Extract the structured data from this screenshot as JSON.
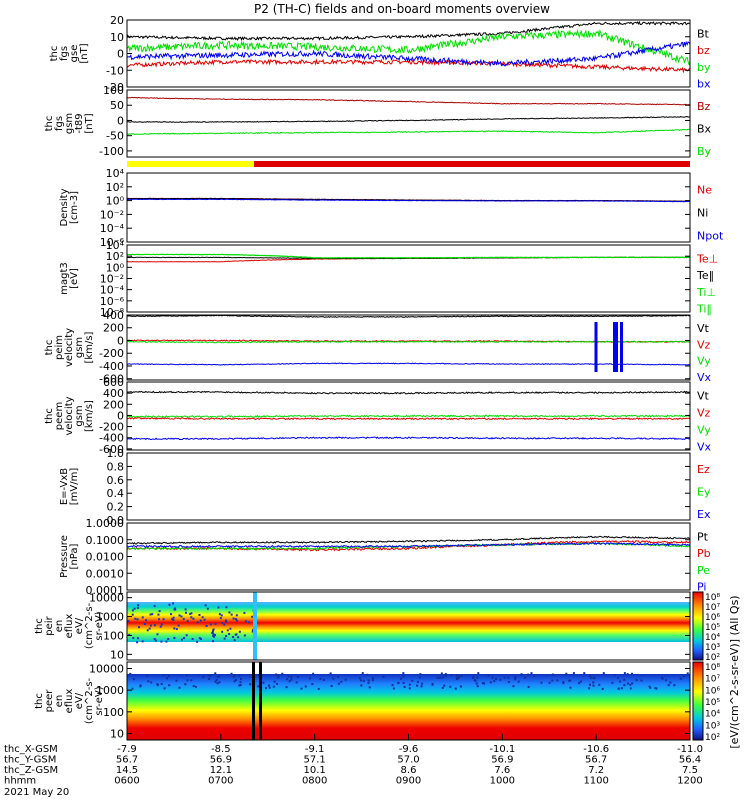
{
  "title": "P2 (TH-C) fields and on-board moments overview",
  "colors": {
    "black": "#000000",
    "red": "#dd0000",
    "green": "#00dd00",
    "blue": "#0000ee",
    "darkred": "#aa0000",
    "yellow": "#ffff00"
  },
  "panels": [
    {
      "id": "fgs",
      "ylabel": [
        "thc",
        "fgs",
        "gse",
        "[nT]"
      ],
      "ticks": [
        {
          "v": 20,
          "t": "20"
        },
        {
          "v": 10,
          "t": "10"
        },
        {
          "v": 0,
          "t": "0"
        },
        {
          "v": -10,
          "t": "-10"
        },
        {
          "v": -20,
          "t": "-20"
        }
      ],
      "legend": [
        {
          "t": "Bt",
          "c": "black"
        },
        {
          "t": "bz",
          "c": "red"
        },
        {
          "t": "by",
          "c": "green"
        },
        {
          "t": "bx",
          "c": "blue"
        }
      ]
    },
    {
      "id": "t89",
      "ylabel": [
        "thc",
        "fgs",
        "gsm",
        "-t89",
        "[nT]"
      ],
      "ticks": [
        {
          "v": 100,
          "t": "100"
        },
        {
          "v": 50,
          "t": "50"
        },
        {
          "v": 0,
          "t": "0"
        },
        {
          "v": -50,
          "t": "-50"
        },
        {
          "v": -100,
          "t": "-100"
        }
      ],
      "legend": [
        {
          "t": "Bz",
          "c": "darkred"
        },
        {
          "t": "Bx",
          "c": "black"
        },
        {
          "t": "By",
          "c": "green"
        }
      ]
    },
    {
      "id": "density",
      "ylabel": [
        "Density",
        "[cm-3]"
      ],
      "ticks": [
        {
          "v": 4,
          "t": "10⁴"
        },
        {
          "v": 2,
          "t": "10²"
        },
        {
          "v": 0,
          "t": "10⁰"
        },
        {
          "v": -2,
          "t": "10⁻²"
        },
        {
          "v": -4,
          "t": "10⁻⁴"
        },
        {
          "v": -6,
          "t": "10⁻⁶"
        }
      ],
      "legend": [
        {
          "t": "Ne",
          "c": "red"
        },
        {
          "t": "Ni",
          "c": "black"
        },
        {
          "t": "Npot",
          "c": "blue"
        }
      ]
    },
    {
      "id": "temp",
      "ylabel": [
        "magt3",
        "[eV]"
      ],
      "ticks": [
        {
          "v": 4,
          "t": "10⁴"
        },
        {
          "v": 2,
          "t": "10²"
        },
        {
          "v": 0,
          "t": "10⁰"
        },
        {
          "v": -2,
          "t": "10⁻²"
        },
        {
          "v": -4,
          "t": "10⁻⁴"
        },
        {
          "v": -6,
          "t": "10⁻⁶"
        },
        {
          "v": -8,
          "t": "10⁻⁸"
        }
      ],
      "legend": [
        {
          "t": "Te⊥",
          "c": "red"
        },
        {
          "t": "Te‖",
          "c": "black"
        },
        {
          "t": "Ti⊥",
          "c": "green"
        },
        {
          "t": "Ti‖",
          "c": "green"
        }
      ]
    },
    {
      "id": "peim",
      "ylabel": [
        "thc",
        "peim",
        "velocity",
        "gsm",
        "[km/s]"
      ],
      "ticks": [
        {
          "v": 400,
          "t": "400"
        },
        {
          "v": 200,
          "t": "200"
        },
        {
          "v": 0,
          "t": "0"
        },
        {
          "v": -200,
          "t": "-200"
        },
        {
          "v": -400,
          "t": "-400"
        },
        {
          "v": -600,
          "t": "-600"
        }
      ],
      "legend": [
        {
          "t": "Vt",
          "c": "black"
        },
        {
          "t": "Vz",
          "c": "red"
        },
        {
          "t": "Vy",
          "c": "green"
        },
        {
          "t": "Vx",
          "c": "blue"
        }
      ]
    },
    {
      "id": "peem",
      "ylabel": [
        "thc",
        "peem",
        "velocity",
        "gsm",
        "[km/s]"
      ],
      "ticks": [
        {
          "v": 600,
          "t": "600"
        },
        {
          "v": 400,
          "t": "400"
        },
        {
          "v": 200,
          "t": "200"
        },
        {
          "v": 0,
          "t": "0"
        },
        {
          "v": -200,
          "t": "-200"
        },
        {
          "v": -400,
          "t": "-400"
        },
        {
          "v": -600,
          "t": "-600"
        }
      ],
      "legend": [
        {
          "t": "Vt",
          "c": "black"
        },
        {
          "t": "Vz",
          "c": "red"
        },
        {
          "t": "Vy",
          "c": "green"
        },
        {
          "t": "Vx",
          "c": "blue"
        }
      ]
    },
    {
      "id": "efield",
      "ylabel": [
        "E=-VxB",
        "[mV/m]"
      ],
      "ticks": [
        {
          "v": 1.0,
          "t": "1.0"
        },
        {
          "v": 0.8,
          "t": "0.8"
        },
        {
          "v": 0.6,
          "t": "0.6"
        },
        {
          "v": 0.4,
          "t": "0.4"
        },
        {
          "v": 0.2,
          "t": "0.2"
        },
        {
          "v": 0.0,
          "t": "0.0"
        }
      ],
      "legend": [
        {
          "t": "Ez",
          "c": "red"
        },
        {
          "t": "Ey",
          "c": "green"
        },
        {
          "t": "Ex",
          "c": "blue"
        }
      ]
    },
    {
      "id": "pressure",
      "ylabel": [
        "Pressure",
        "[nPa]"
      ],
      "ticks": [
        {
          "v": 0,
          "t": "1.0000"
        },
        {
          "v": -1,
          "t": "0.1000"
        },
        {
          "v": -2,
          "t": "0.0100"
        },
        {
          "v": -3,
          "t": "0.0010"
        },
        {
          "v": -4,
          "t": "0.0001"
        }
      ],
      "legend": [
        {
          "t": "Pt",
          "c": "black"
        },
        {
          "t": "Pb",
          "c": "red"
        },
        {
          "t": "Pe",
          "c": "green"
        },
        {
          "t": "Pi",
          "c": "blue"
        }
      ]
    },
    {
      "id": "peir",
      "ylabel": [
        "thc",
        "peir",
        "en",
        "eflux",
        "eV/",
        "(cm^2-s-",
        "sr-eV)"
      ],
      "ticks": [
        {
          "v": 4,
          "t": "10000"
        },
        {
          "v": 3,
          "t": "1000"
        },
        {
          "v": 2,
          "t": "100"
        },
        {
          "v": 1,
          "t": "10"
        }
      ],
      "legend": []
    },
    {
      "id": "peer",
      "ylabel": [
        "thc",
        "peer",
        "en",
        "eflux",
        "eV/",
        "(cm^2-s-",
        "sr-eV)"
      ],
      "ticks": [
        {
          "v": 4,
          "t": "10000"
        },
        {
          "v": 3,
          "t": "1000"
        },
        {
          "v": 2,
          "t": "100"
        },
        {
          "v": 1,
          "t": "10"
        }
      ],
      "legend": []
    }
  ],
  "colorbar": {
    "label": "[eV/(cm^2-s-sr-eV)] (All Qs)",
    "ticks_top": [
      "10⁸",
      "10⁷",
      "10⁶",
      "10⁵",
      "10⁴",
      "10³",
      "10²"
    ],
    "ticks_bottom": [
      "10⁸",
      "10⁷",
      "10⁶",
      "10⁵",
      "10⁴",
      "10³",
      "10²"
    ]
  },
  "xaxis": {
    "rows": [
      {
        "label": "thc_X-GSM",
        "values": [
          "-7.9",
          "-8.5",
          "-9.1",
          "-9.6",
          "-10.1",
          "-10.6",
          "-11.0"
        ]
      },
      {
        "label": "thc_Y-GSM",
        "values": [
          "56.7",
          "56.9",
          "57.1",
          "57.0",
          "56.9",
          "56.7",
          "56.4"
        ]
      },
      {
        "label": "thc_Z-GSM",
        "values": [
          "14.5",
          "12.1",
          "10.1",
          "8.6",
          "7.6",
          "7.2",
          "7.5"
        ]
      },
      {
        "label": "hhmm",
        "values": [
          "0600",
          "0700",
          "0800",
          "0900",
          "1000",
          "1100",
          "1200"
        ]
      }
    ],
    "date": "2021 May 20"
  },
  "chart_data": {
    "type": "line",
    "title": "P2 (TH-C) fields and on-board moments overview",
    "x": [
      "0600",
      "0700",
      "0800",
      "0900",
      "1000",
      "1100",
      "1200"
    ],
    "xlabel": "hhmm",
    "subplots": [
      {
        "name": "thc fgs gse [nT]",
        "ylim": [
          -20,
          20
        ],
        "series": [
          {
            "name": "Bt",
            "values": [
              10,
              9,
              9,
              10,
              12,
              18,
              18
            ]
          },
          {
            "name": "bz",
            "values": [
              -7,
              -5,
              -5,
              -5,
              -6,
              -8,
              -10
            ]
          },
          {
            "name": "by",
            "values": [
              3,
              5,
              4,
              2,
              10,
              12,
              -5
            ]
          },
          {
            "name": "bx",
            "values": [
              -2,
              -1,
              0,
              -3,
              -6,
              -3,
              6
            ]
          }
        ]
      },
      {
        "name": "thc fgs gsm -t89 [nT]",
        "ylim": [
          -120,
          100
        ],
        "series": [
          {
            "name": "Bz",
            "values": [
              75,
              70,
              68,
              62,
              55,
              55,
              52
            ]
          },
          {
            "name": "Bx",
            "values": [
              -5,
              -5,
              -3,
              0,
              5,
              8,
              12
            ]
          },
          {
            "name": "By",
            "values": [
              -45,
              -42,
              -40,
              -38,
              -35,
              -40,
              -30
            ]
          }
        ]
      },
      {
        "name": "Density [cm-3]",
        "yscale": "log",
        "ylim": [
          1e-06,
          10000.0
        ],
        "series": [
          {
            "name": "Ne",
            "values": [
              2,
              2,
              1.5,
              1.2,
              1,
              1,
              0.8
            ]
          },
          {
            "name": "Ni",
            "values": [
              2,
              2,
              1.5,
              1.2,
              1,
              1,
              0.8
            ]
          },
          {
            "name": "Npot",
            "values": [
              1.5,
              1.5,
              1.2,
              1,
              0.9,
              0.9,
              0.7
            ]
          }
        ]
      },
      {
        "name": "magt3 [eV]",
        "yscale": "log",
        "ylim": [
          1e-08,
          10000.0
        ],
        "series": [
          {
            "name": "Te⊥",
            "values": [
              10,
              10,
              30,
              40,
              50,
              60,
              60
            ]
          },
          {
            "name": "Te‖",
            "values": [
              60,
              60,
              40,
              40,
              50,
              60,
              60
            ]
          },
          {
            "name": "Ti⊥",
            "values": [
              200,
              200,
              50,
              50,
              60,
              60,
              60
            ]
          },
          {
            "name": "Ti‖",
            "values": [
              200,
              200,
              50,
              50,
              60,
              60,
              60
            ]
          }
        ]
      },
      {
        "name": "thc peim velocity gsm [km/s]",
        "ylim": [
          -600,
          400
        ],
        "series": [
          {
            "name": "Vt",
            "values": [
              380,
              390,
              370,
              370,
              380,
              380,
              390
            ]
          },
          {
            "name": "Vz",
            "values": [
              0,
              0,
              -10,
              -10,
              -10,
              -20,
              -20
            ]
          },
          {
            "name": "Vy",
            "values": [
              -20,
              -30,
              -20,
              -20,
              -20,
              -20,
              -20
            ]
          },
          {
            "name": "Vx",
            "values": [
              -370,
              -380,
              -360,
              -360,
              -370,
              -370,
              -380
            ]
          }
        ]
      },
      {
        "name": "thc peem velocity gsm [km/s]",
        "ylim": [
          -600,
          600
        ],
        "series": [
          {
            "name": "Vt",
            "values": [
              420,
              420,
              400,
              400,
              410,
              410,
              420
            ]
          },
          {
            "name": "Vz",
            "values": [
              -50,
              -60,
              -60,
              -60,
              -60,
              -60,
              -60
            ]
          },
          {
            "name": "Vy",
            "values": [
              -20,
              -20,
              -10,
              -10,
              -10,
              -10,
              -10
            ]
          },
          {
            "name": "Vx",
            "values": [
              -420,
              -420,
              -400,
              -400,
              -410,
              -410,
              -420
            ]
          }
        ]
      },
      {
        "name": "E=-VxB [mV/m]",
        "ylim": [
          0,
          1
        ],
        "series": [
          {
            "name": "Ez",
            "values": []
          },
          {
            "name": "Ey",
            "values": []
          },
          {
            "name": "Ex",
            "values": []
          }
        ]
      },
      {
        "name": "Pressure [nPa]",
        "yscale": "log",
        "ylim": [
          0.0001,
          1
        ],
        "series": [
          {
            "name": "Pt",
            "values": [
              0.06,
              0.07,
              0.07,
              0.08,
              0.1,
              0.15,
              0.12
            ]
          },
          {
            "name": "Pb",
            "values": [
              0.03,
              0.03,
              0.025,
              0.03,
              0.05,
              0.08,
              0.07
            ]
          },
          {
            "name": "Pe",
            "values": [
              0.03,
              0.03,
              0.03,
              0.04,
              0.05,
              0.06,
              0.04
            ]
          },
          {
            "name": "Pi",
            "values": [
              0.04,
              0.04,
              0.04,
              0.04,
              0.05,
              0.06,
              0.05
            ]
          }
        ]
      },
      {
        "name": "thc peir en eflux",
        "type": "heatmap",
        "yscale": "log",
        "ylim": [
          5,
          20000
        ]
      },
      {
        "name": "thc peer en eflux",
        "type": "heatmap",
        "yscale": "log",
        "ylim": [
          5,
          20000
        ]
      }
    ]
  }
}
